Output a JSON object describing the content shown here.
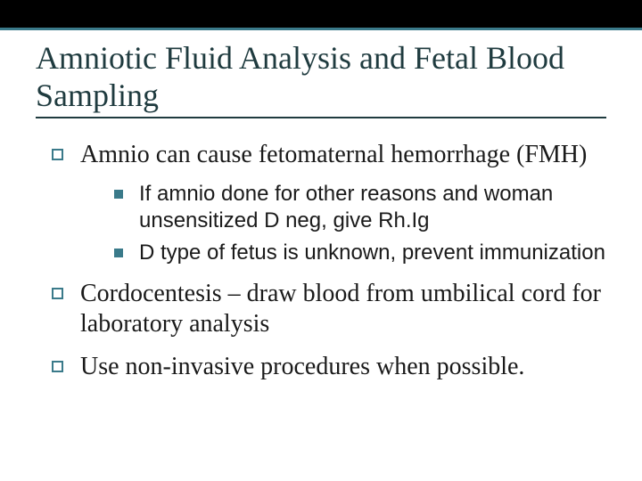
{
  "colors": {
    "topbar_bg": "#000000",
    "accent": "#3a7a8a",
    "title_color": "#1f3b3f",
    "text_color": "#1a1a1a",
    "background": "#ffffff"
  },
  "title": "Amniotic Fluid Analysis and Fetal Blood Sampling",
  "bullets": [
    {
      "text": "Amnio can cause fetomaternal hemorrhage (FMH)",
      "sub": [
        "If amnio done for other reasons and woman unsensitized D neg, give Rh.Ig",
        "D type of fetus is unknown, prevent immunization"
      ]
    },
    {
      "text": "Cordocentesis – draw blood from umbilical cord for laboratory analysis",
      "sub": []
    },
    {
      "text": "Use non-invasive procedures when possible.",
      "sub": []
    }
  ]
}
